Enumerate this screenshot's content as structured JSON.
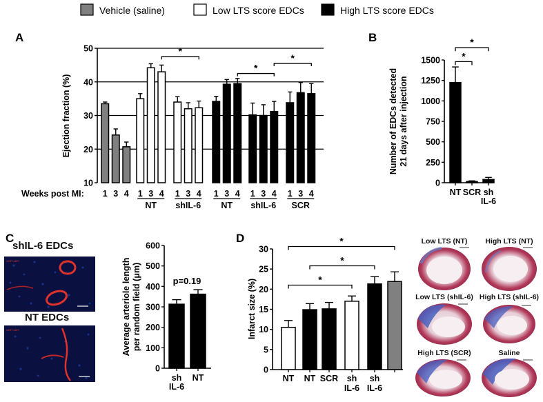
{
  "legend": [
    {
      "label": "Vehicle (saline)",
      "color": "#808080"
    },
    {
      "label": "Low LTS score EDCs",
      "color": "#ffffff"
    },
    {
      "label": "High LTS score EDCs",
      "color": "#000000"
    }
  ],
  "panels": {
    "A": "A",
    "B": "B",
    "C": "C",
    "D": "D"
  },
  "colors": {
    "vehicle": "#808080",
    "low": "#ffffff",
    "high": "#000000",
    "photo_bg": "#0a1040",
    "photo_vessel": "#e0332b"
  },
  "chart_data": [
    {
      "id": "A",
      "type": "bar",
      "ylabel": "Ejection fraction (%)",
      "ylim": [
        10,
        50
      ],
      "yticks": [
        10,
        20,
        30,
        40,
        50
      ],
      "xlabel_prefix": "Weeks post MI:",
      "gridlines": [
        20,
        30,
        40,
        50
      ],
      "groups": [
        {
          "label": "",
          "fill": "gray",
          "ticks": [
            "1",
            "3",
            "4"
          ],
          "values": [
            33.5,
            24.2,
            20.7
          ],
          "errors": [
            0.5,
            1.8,
            1.4
          ]
        },
        {
          "label": "NT",
          "fill": "white",
          "ticks": [
            "1",
            "3",
            "4"
          ],
          "values": [
            35.0,
            44.2,
            43.0
          ],
          "errors": [
            1.5,
            1.2,
            2.0
          ]
        },
        {
          "label": "shIL-6",
          "fill": "white",
          "ticks": [
            "1",
            "3",
            "4"
          ],
          "values": [
            34.0,
            32.0,
            32.3
          ],
          "errors": [
            1.6,
            1.8,
            2.0
          ]
        },
        {
          "label": "NT",
          "fill": "black",
          "ticks": [
            "1",
            "3",
            "4"
          ],
          "values": [
            34.2,
            39.3,
            39.5
          ],
          "errors": [
            1.5,
            1.4,
            1.5
          ]
        },
        {
          "label": "shIL-6",
          "fill": "black",
          "ticks": [
            "1",
            "3",
            "4"
          ],
          "values": [
            30.2,
            30.0,
            31.2
          ],
          "errors": [
            3.5,
            3.2,
            3.0
          ]
        },
        {
          "label": "SCR",
          "fill": "black",
          "ticks": [
            "1",
            "3",
            "4"
          ],
          "values": [
            33.8,
            36.8,
            36.5
          ],
          "errors": [
            3.2,
            3.0,
            3.0
          ]
        }
      ],
      "significance": [
        {
          "label": "*",
          "from": [
            1,
            2
          ],
          "to": [
            2,
            2
          ],
          "y": 47.5
        },
        {
          "label": "*",
          "from": [
            3,
            2
          ],
          "to": [
            4,
            2
          ],
          "y": 42.5
        },
        {
          "label": "*",
          "from": [
            4,
            2
          ],
          "to": [
            5,
            2
          ],
          "y": 45.5
        }
      ]
    },
    {
      "id": "B",
      "type": "bar",
      "ylabel": "Number of EDCs detected\n21 days after injection",
      "ylim": [
        0,
        1500
      ],
      "yticks": [
        0,
        250,
        500,
        750,
        1000,
        1250,
        1500
      ],
      "categories": [
        "NT",
        "SCR",
        "sh\nIL-6"
      ],
      "values": [
        1225,
        15,
        40
      ],
      "errors": [
        190,
        8,
        25
      ],
      "significance": [
        {
          "label": "*",
          "from": 0,
          "to": 1,
          "y": 1480
        },
        {
          "label": "*",
          "from": 0,
          "to": 2,
          "y": 1650
        }
      ]
    },
    {
      "id": "C",
      "type": "bar",
      "ylabel": "Average arteriole length\nper random field (μm)",
      "ylim": [
        0,
        600
      ],
      "yticks": [
        0,
        100,
        200,
        300,
        400,
        500,
        600
      ],
      "categories": [
        "sh\nIL-6",
        "NT"
      ],
      "values": [
        313,
        362
      ],
      "errors": [
        22,
        22
      ],
      "annotation": "p=0.19"
    },
    {
      "id": "D",
      "type": "bar",
      "ylabel": "Infarct size (%)",
      "ylim": [
        0,
        30
      ],
      "yticks": [
        0,
        5,
        10,
        15,
        20,
        25,
        30
      ],
      "categories": [
        "NT",
        "NT",
        "SCR",
        "sh\nIL-6",
        "sh\nIL-6",
        ""
      ],
      "fills": [
        "white",
        "black",
        "black",
        "white",
        "black",
        "gray"
      ],
      "values": [
        10.5,
        14.9,
        15.1,
        17.0,
        21.3,
        21.9
      ],
      "errors": [
        1.7,
        1.5,
        1.6,
        1.3,
        1.8,
        2.4
      ],
      "significance": [
        {
          "label": "*",
          "from": 0,
          "to": 3,
          "y": 21.0
        },
        {
          "label": "*",
          "from": 1,
          "to": 4,
          "y": 25.8
        },
        {
          "label": "*",
          "from": 0,
          "to": 5,
          "y": 30.6
        }
      ]
    }
  ],
  "images": {
    "c_top_title": "shIL-6 EDCs",
    "c_bottom_title": "NT EDCs",
    "hearts": [
      "Low LTS (NT)",
      "High LTS (NT)",
      "Low LTS (shIL-6)",
      "High LTS (shIL-6)",
      "High LTS (SCR)",
      "Saline"
    ]
  }
}
